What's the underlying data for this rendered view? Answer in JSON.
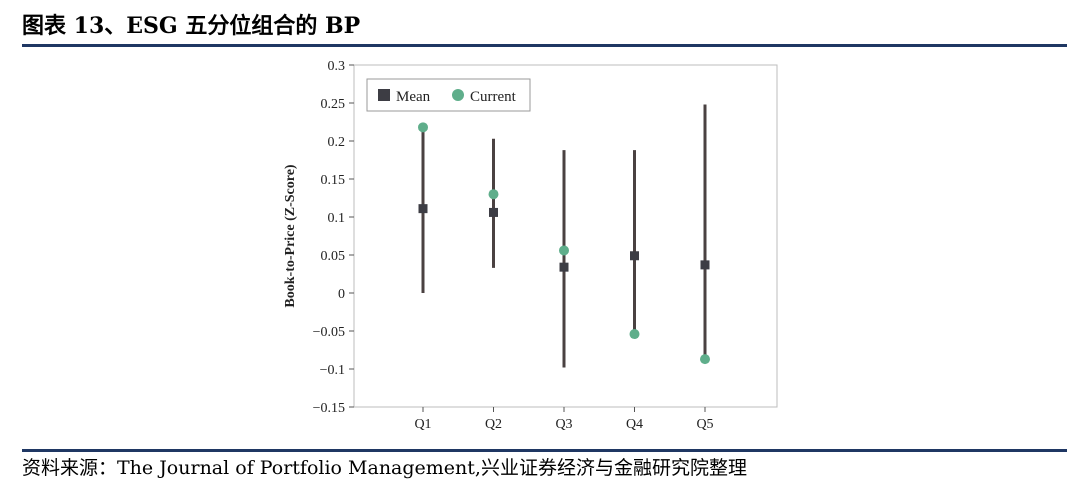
{
  "figure": {
    "title": "图表 13、ESG 五分位组合的 BP",
    "source": "资料来源：The Journal of Portfolio Management,兴业证券经济与金融研究院整理"
  },
  "chart_data": {
    "type": "scatter",
    "title": "",
    "xlabel": "",
    "ylabel": "Book-to-Price (Z-Score)",
    "categories": [
      "Q1",
      "Q2",
      "Q3",
      "Q4",
      "Q5"
    ],
    "ylim": [
      -0.15,
      0.3
    ],
    "yticks": [
      -0.15,
      -0.1,
      -0.05,
      0,
      0.05,
      0.1,
      0.15,
      0.2,
      0.25,
      0.3
    ],
    "ytick_labels": [
      "−0.15",
      "−0.1",
      "−0.05",
      "0",
      "0.05",
      "0.1",
      "0.15",
      "0.2",
      "0.25",
      "0.3"
    ],
    "range_low": [
      0.0,
      0.033,
      -0.098,
      -0.055,
      -0.088
    ],
    "range_high": [
      0.215,
      0.203,
      0.188,
      0.188,
      0.248
    ],
    "series": [
      {
        "name": "Mean",
        "marker": "square",
        "color": "#3d3d44",
        "values": [
          0.111,
          0.106,
          0.034,
          0.049,
          0.037
        ]
      },
      {
        "name": "Current",
        "marker": "circle",
        "color": "#5fae8b",
        "values": [
          0.218,
          0.13,
          0.056,
          -0.054,
          -0.087
        ]
      }
    ],
    "range_color": "#4a4141",
    "legend_position": "top-left"
  }
}
